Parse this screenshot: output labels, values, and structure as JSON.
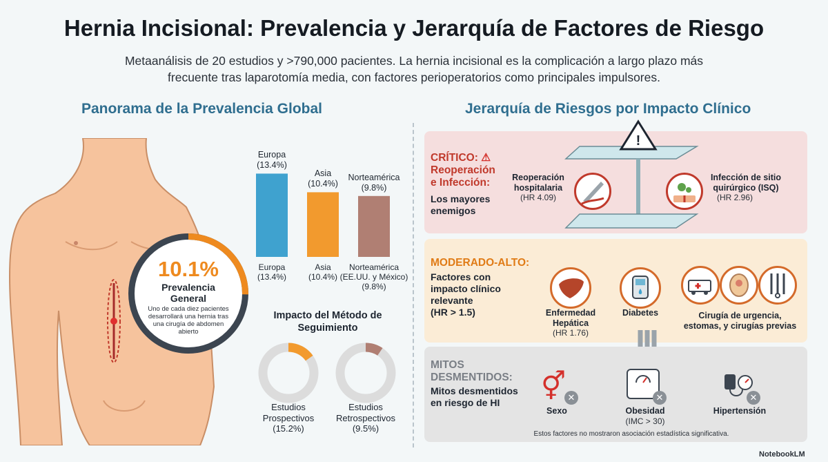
{
  "title": "Hernia Incisional: Prevalencia y Jerarquía de Factores de Riesgo",
  "subtitle_line1": "Metaanálisis de 20 estudios y >790,000 pacientes. La hernia incisional es la complicación a largo plazo más",
  "subtitle_line2": "frecuente tras laparotomía media, con factores perioperatorios como principales impulsores.",
  "left_heading": "Panorama de la Prevalencia Global",
  "right_heading": "Jerarquía de Riesgos por Impacto Clínico",
  "prevalence": {
    "value": "10.1%",
    "label_line1": "Prevalencia",
    "label_line2": "General",
    "desc_line1": "Uno de cada diez pacientes",
    "desc_line2": "desarrollará una hernia tras",
    "desc_line3": "una cirugía de abdomen",
    "desc_line4": "abierto",
    "fraction": 0.101
  },
  "chart_data": {
    "type": "bar",
    "categories": [
      "Europa",
      "Asia",
      "Norteamérica"
    ],
    "values": [
      13.4,
      10.4,
      9.8
    ],
    "colors": [
      "#3fa2cf",
      "#f29a2e",
      "#b07f73"
    ],
    "top_labels": [
      [
        "Europa",
        "(13.4%)"
      ],
      [
        "Asia",
        "(10.4%)"
      ],
      [
        "Norteamérica",
        "(9.8%)"
      ]
    ],
    "bottom_labels": [
      [
        "Europa",
        "(13.4%)"
      ],
      [
        "Asia",
        "(10.4%)",
        ""
      ],
      [
        "Norteamérica",
        "(EE.UU. y México)",
        "(9.8%)"
      ]
    ]
  },
  "method": {
    "heading_line1": "Impacto del Método de",
    "heading_line2": "Seguimiento",
    "donuts": [
      {
        "lines": [
          "Estudios",
          "Prospectivos",
          "(15.2%)"
        ],
        "value": 15.2,
        "color": "#f29a2e"
      },
      {
        "lines": [
          "Estudios",
          "Retrospectivos",
          "(9.5%)"
        ],
        "value": 9.5,
        "color": "#b07f73"
      }
    ]
  },
  "critical": {
    "head_line1": "CRÍTICO:",
    "head_line2": "Reoperación",
    "head_line3": "e Infección:",
    "desc_line1": "Los mayores",
    "desc_line2": "enemigos",
    "head_color": "#c0392b",
    "items": [
      {
        "title_line1": "Reoperación",
        "title_line2": "hospitalaria",
        "hr": "(HR 4.09)",
        "icon": "scalpel-icon"
      },
      {
        "title_line1": "Infección de sitio",
        "title_line2": "quirúrgico (ISQ)",
        "hr": "(HR 2.96)",
        "icon": "infection-icon"
      }
    ]
  },
  "moderate": {
    "head": "MODERADO-ALTO:",
    "desc_line1": "Factores con",
    "desc_line2": "impacto clínico",
    "desc_line3": "relevante",
    "desc_line4": "(HR > 1.5)",
    "head_color": "#e07b16",
    "items": [
      {
        "title_line1": "Enfermedad",
        "title_line2": "Hepática",
        "hr": "(HR 1.76)",
        "icon": "liver-icon"
      },
      {
        "title_line1": "Diabetes",
        "title_line2": "",
        "hr": "",
        "icon": "glucometer-icon"
      },
      {
        "title_line1": "Cirugía de urgencia,",
        "title_line2": "estomas, y cirugías previas",
        "hr": "",
        "icon": "ambulance-icon"
      }
    ]
  },
  "myths": {
    "head_line1": "MITOS",
    "head_line2": "DESMENTIDOS:",
    "desc_line1": "Mitos desmentidos",
    "desc_line2": "en riesgo de HI",
    "head_color": "#7a7f86",
    "items": [
      {
        "title": "Sexo",
        "sub": "",
        "icon": "gender-icon"
      },
      {
        "title": "Obesidad",
        "sub": "(IMC > 30)",
        "icon": "scale-icon"
      },
      {
        "title": "Hipertensión",
        "sub": "",
        "icon": "blood-pressure-icon"
      }
    ],
    "note": "Estos factores no mostraron asociación estadística significativa."
  },
  "brand": "NotebookLM"
}
